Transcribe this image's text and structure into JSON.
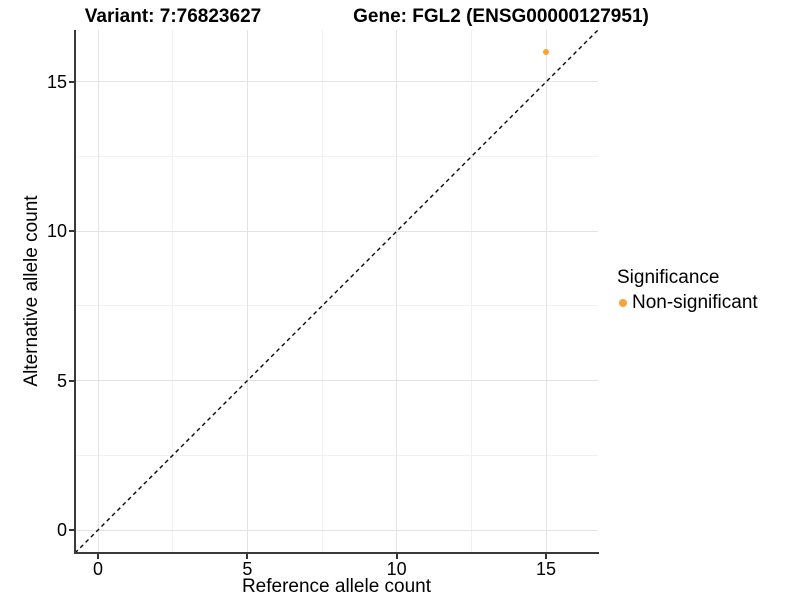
{
  "chart_data": {
    "type": "scatter",
    "title_left": "Variant: 7:76823627",
    "title_right": "Gene: FGL2 (ENSG00000127951)",
    "xlabel": "Reference allele count",
    "ylabel": "Alternative allele count",
    "xlim": [
      -0.8,
      16.8
    ],
    "ylim": [
      -0.8,
      16.8
    ],
    "x_ticks": [
      0,
      5,
      10,
      15
    ],
    "y_ticks": [
      0,
      5,
      10,
      15
    ],
    "x_minor_ticks": [
      2.5,
      7.5,
      12.5
    ],
    "y_minor_ticks": [
      2.5,
      7.5,
      12.5
    ],
    "grid": "major and minor gridlines on, white panel",
    "points": [
      {
        "x": 15,
        "y": 16,
        "series": "Non-significant",
        "color": "#f8a433"
      }
    ],
    "reference_line": {
      "equation": "y = x",
      "style": "dashed",
      "color": "#000000"
    },
    "legend": {
      "title": "Significance",
      "position": "right",
      "entries": [
        {
          "label": "Non-significant",
          "color": "#f8a433",
          "marker": "circle"
        }
      ]
    }
  },
  "colors": {
    "background": "#ffffff",
    "gridline_major": "#e3e3e3",
    "gridline_minor": "#f1f1f1",
    "axis_line": "#3a3a3a",
    "text": "#000000",
    "nonsignificant_orange": "#f8a433"
  }
}
